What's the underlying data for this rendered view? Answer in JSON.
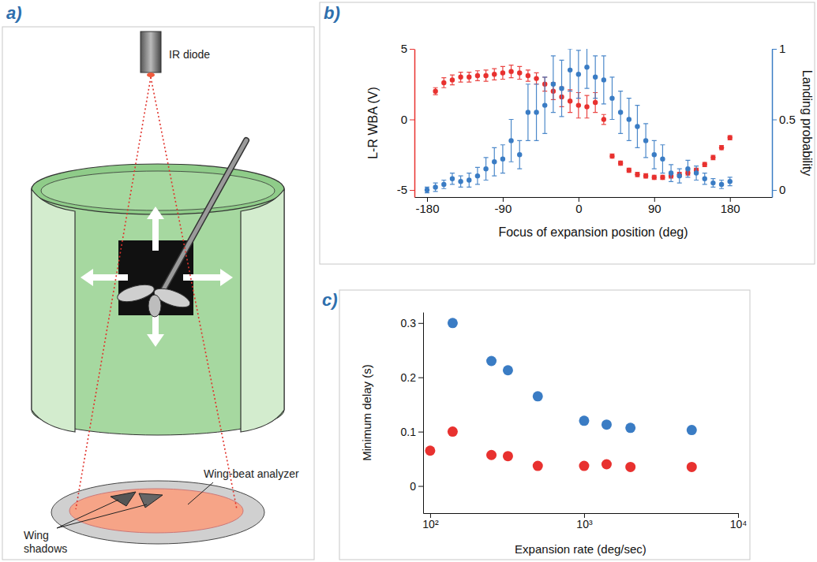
{
  "chart_data": [
    {
      "type": "scatter",
      "panel_label": "b)",
      "x_label": "Focus of expansion position (deg)",
      "y_label": "L-R WBA (V)",
      "y2_label": "Landing probability",
      "xlim": [
        -195,
        230
      ],
      "xticks": [
        -180,
        -90,
        0,
        90,
        180
      ],
      "ylim": [
        -5.5,
        5
      ],
      "yticks": [
        -5,
        0,
        5
      ],
      "y2lim": [
        -0.05,
        1
      ],
      "y2ticks": [
        0,
        0.5,
        1
      ],
      "series": [
        {
          "color": "#e8312f",
          "marker": "circle",
          "x": [
            -170,
            -160,
            -150,
            -140,
            -130,
            -120,
            -110,
            -100,
            -90,
            -80,
            -70,
            -60,
            -50,
            -40,
            -30,
            -20,
            -10,
            0,
            10,
            20,
            30,
            40,
            50,
            60,
            70,
            80,
            90,
            100,
            110,
            120,
            130,
            140,
            150,
            160,
            170,
            180
          ],
          "values": [
            2.0,
            2.6,
            2.8,
            3.0,
            3.0,
            3.1,
            3.1,
            3.2,
            3.3,
            3.4,
            3.3,
            3.1,
            2.9,
            2.5,
            2.0,
            1.6,
            1.3,
            1.0,
            0.9,
            1.2,
            0.0,
            -2.6,
            -3.1,
            -3.6,
            -3.9,
            -4.0,
            -4.1,
            -4.1,
            -4.0,
            -3.9,
            -3.8,
            -3.6,
            -3.2,
            -2.7,
            -2.0,
            -1.3
          ],
          "error": [
            0.25,
            0.35,
            0.35,
            0.35,
            0.35,
            0.35,
            0.4,
            0.4,
            0.45,
            0.45,
            0.45,
            0.4,
            0.4,
            0.5,
            0.6,
            0.7,
            0.8,
            0.9,
            0.8,
            0.7,
            0.35,
            0.15,
            0.15,
            0.15,
            0.15,
            0.15,
            0.15,
            0.15,
            0.15,
            0.15,
            0.15,
            0.15,
            0.15,
            0.15,
            0.15,
            0.15
          ]
        },
        {
          "color": "#3a7cc4",
          "marker": "circle",
          "axis": "y2",
          "x": [
            -180,
            -170,
            -160,
            -150,
            -140,
            -130,
            -120,
            -110,
            -100,
            -90,
            -80,
            -70,
            -60,
            -50,
            -40,
            -30,
            -20,
            -10,
            0,
            10,
            20,
            30,
            40,
            50,
            60,
            70,
            80,
            90,
            100,
            110,
            120,
            130,
            140,
            150,
            160,
            170,
            180
          ],
          "values": [
            0.0,
            0.02,
            0.04,
            0.08,
            0.06,
            0.07,
            0.1,
            0.15,
            0.2,
            0.22,
            0.35,
            0.25,
            0.55,
            0.55,
            0.6,
            0.75,
            0.72,
            0.85,
            0.82,
            0.87,
            0.8,
            0.78,
            0.65,
            0.55,
            0.5,
            0.45,
            0.35,
            0.25,
            0.22,
            0.12,
            0.1,
            0.15,
            0.12,
            0.08,
            0.05,
            0.04,
            0.06
          ],
          "error": [
            0.02,
            0.03,
            0.03,
            0.04,
            0.04,
            0.05,
            0.06,
            0.08,
            0.1,
            0.1,
            0.15,
            0.1,
            0.2,
            0.2,
            0.2,
            0.2,
            0.2,
            0.15,
            0.17,
            0.15,
            0.15,
            0.17,
            0.15,
            0.15,
            0.15,
            0.15,
            0.12,
            0.1,
            0.1,
            0.06,
            0.05,
            0.06,
            0.05,
            0.04,
            0.03,
            0.03,
            0.03
          ]
        }
      ]
    },
    {
      "type": "scatter",
      "panel_label": "c)",
      "x_label": "Expansion rate (deg/sec)",
      "y_label": "Minimum delay (s)",
      "log": "x",
      "xlim": [
        90,
        10000
      ],
      "xticks": [
        {
          "value": 100,
          "label": "10²"
        },
        {
          "value": 1000,
          "label": "10³"
        },
        {
          "value": 10000,
          "label": "10⁴"
        }
      ],
      "ylim": [
        -0.05,
        0.32
      ],
      "yticks": [
        0,
        0.1,
        0.2,
        0.3
      ],
      "series": [
        {
          "color": "#3a7cc4",
          "marker": "circle",
          "x": [
            140,
            250,
            320,
            500,
            1000,
            1400,
            2000,
            5000
          ],
          "values": [
            0.3,
            0.23,
            0.213,
            0.165,
            0.12,
            0.113,
            0.107,
            0.103
          ]
        },
        {
          "color": "#e8312f",
          "marker": "circle",
          "x": [
            100,
            140,
            250,
            320,
            500,
            1000,
            1400,
            2000,
            5000
          ],
          "values": [
            0.065,
            0.1,
            0.057,
            0.055,
            0.037,
            0.037,
            0.04,
            0.035,
            0.035
          ]
        }
      ]
    }
  ],
  "diagram": {
    "panel_label": "a)",
    "labels": {
      "ir_diode": "IR diode",
      "analyzer": "Wing-beat analyzer",
      "shadows": "Wing shadows"
    }
  }
}
